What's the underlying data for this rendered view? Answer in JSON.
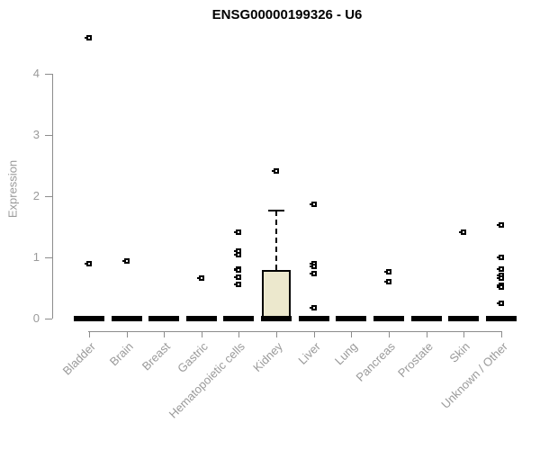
{
  "chart_data": {
    "type": "boxplot",
    "title": "ENSG00000199326 - U6",
    "xlabel": "",
    "ylabel": "Expression",
    "ylim": [
      -0.2,
      4.7
    ],
    "yticks": [
      0,
      1,
      2,
      3,
      4
    ],
    "grid": false,
    "legend": "none",
    "categories": [
      "Bladder",
      "Brain",
      "Breast",
      "Gastric",
      "Hematopoietic cells",
      "Kidney",
      "Liver",
      "Lung",
      "Pancreas",
      "Prostate",
      "Skin",
      "Unknown / Other"
    ],
    "series": [
      {
        "name": "Bladder",
        "median": 0,
        "q1": 0,
        "q3": 0,
        "whisker_low": 0,
        "whisker_high": 0,
        "points": [
          4.59,
          0.9
        ]
      },
      {
        "name": "Brain",
        "median": 0,
        "q1": 0,
        "q3": 0,
        "whisker_low": 0,
        "whisker_high": 0,
        "points": [
          0.94
        ]
      },
      {
        "name": "Breast",
        "median": 0,
        "q1": 0,
        "q3": 0,
        "whisker_low": 0,
        "whisker_high": 0,
        "points": []
      },
      {
        "name": "Gastric",
        "median": 0,
        "q1": 0,
        "q3": 0,
        "whisker_low": 0,
        "whisker_high": 0,
        "points": [
          0.66
        ]
      },
      {
        "name": "Hematopoietic cells",
        "median": 0,
        "q1": 0,
        "q3": 0,
        "whisker_low": 0,
        "whisker_high": 0,
        "points": [
          1.41,
          1.11,
          1.04,
          0.81,
          0.79,
          0.67,
          0.56
        ]
      },
      {
        "name": "Kidney",
        "median": 0,
        "q1": 0,
        "q3": 0.79,
        "whisker_low": 0,
        "whisker_high": 1.77,
        "points": [
          2.41
        ]
      },
      {
        "name": "Liver",
        "median": 0,
        "q1": 0,
        "q3": 0,
        "whisker_low": 0,
        "whisker_high": 0,
        "points": [
          1.87,
          0.89,
          0.86,
          0.73,
          0.18
        ]
      },
      {
        "name": "Lung",
        "median": 0,
        "q1": 0,
        "q3": 0,
        "whisker_low": 0,
        "whisker_high": 0,
        "points": []
      },
      {
        "name": "Pancreas",
        "median": 0,
        "q1": 0,
        "q3": 0,
        "whisker_low": 0,
        "whisker_high": 0,
        "points": [
          0.76,
          0.61
        ]
      },
      {
        "name": "Prostate",
        "median": 0,
        "q1": 0,
        "q3": 0,
        "whisker_low": 0,
        "whisker_high": 0,
        "points": []
      },
      {
        "name": "Skin",
        "median": 0,
        "q1": 0,
        "q3": 0,
        "whisker_low": 0,
        "whisker_high": 0,
        "points": [
          1.41
        ]
      },
      {
        "name": "Unknown / Other",
        "median": 0,
        "q1": 0,
        "q3": 0,
        "whisker_low": 0,
        "whisker_high": 0,
        "points": [
          1.53,
          1.0,
          0.81,
          0.7,
          0.66,
          0.55,
          0.51,
          0.25
        ]
      }
    ],
    "colors": {
      "box_fill": "#ece8cd",
      "box_border": "#000000",
      "median": "#000000",
      "point": "#000000",
      "axis": "#8c8c8c",
      "tick_text": "#9a9a9a",
      "title_text": "#000000",
      "background": "#ffffff"
    }
  }
}
